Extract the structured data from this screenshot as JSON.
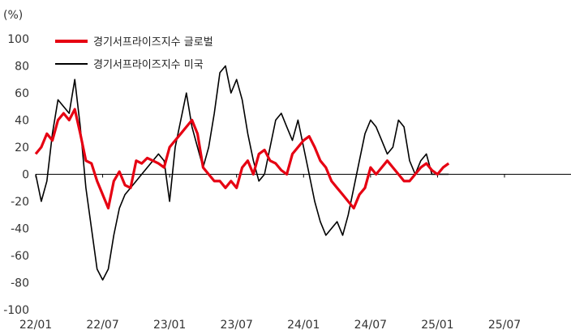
{
  "chart_data": {
    "type": "line",
    "ylabel": "(%)",
    "ylim": [
      -100,
      100
    ],
    "yticks": [
      100,
      80,
      60,
      40,
      20,
      0,
      -20,
      -40,
      -60,
      -80,
      -100
    ],
    "x_ticks": [
      {
        "label": "22/01",
        "month": 0
      },
      {
        "label": "22/07",
        "month": 6
      },
      {
        "label": "23/01",
        "month": 12
      },
      {
        "label": "23/07",
        "month": 18
      },
      {
        "label": "24/01",
        "month": 24
      },
      {
        "label": "24/07",
        "month": 30
      },
      {
        "label": "25/01",
        "month": 36
      },
      {
        "label": "25/07",
        "month": 42
      }
    ],
    "xlim": [
      0,
      48
    ],
    "zero_line": true,
    "legend_position": "top-left",
    "series": [
      {
        "name": "경기서프라이즈지수 글로벌",
        "color": "#e60012",
        "x": [
          0,
          0.5,
          1,
          1.5,
          2,
          2.5,
          3,
          3.5,
          4,
          4.5,
          5,
          5.5,
          6,
          6.5,
          7,
          7.5,
          8,
          8.5,
          9,
          9.5,
          10,
          10.5,
          11,
          11.5,
          12,
          12.5,
          13,
          13.5,
          14,
          14.5,
          15,
          15.5,
          16,
          16.5,
          17,
          17.5,
          18,
          18.5,
          19,
          19.5,
          20,
          20.5,
          21,
          21.5,
          22,
          22.5,
          23,
          23.5,
          24,
          24.5,
          25,
          25.5,
          26,
          26.5,
          27,
          27.5,
          28,
          28.5,
          29,
          29.5,
          30,
          30.5,
          31,
          31.5,
          32,
          32.5,
          33,
          33.5,
          34,
          34.5,
          35,
          35.5,
          36,
          36.5,
          37
        ],
        "y": [
          15,
          20,
          30,
          25,
          40,
          45,
          40,
          48,
          30,
          10,
          8,
          -5,
          -15,
          -25,
          -5,
          2,
          -8,
          -10,
          10,
          8,
          12,
          10,
          8,
          5,
          20,
          25,
          30,
          35,
          40,
          30,
          5,
          0,
          -5,
          -5,
          -10,
          -5,
          -10,
          5,
          10,
          0,
          15,
          18,
          10,
          8,
          3,
          0,
          15,
          20,
          25,
          28,
          20,
          10,
          5,
          -5,
          -10,
          -15,
          -20,
          -25,
          -15,
          -10,
          5,
          0,
          5,
          10,
          5,
          0,
          -5,
          -5,
          0,
          5,
          8,
          3,
          0,
          5,
          8
        ]
      },
      {
        "name": "경기서프라이즈지수 미국",
        "color": "#000000",
        "x": [
          0,
          0.5,
          1,
          1.5,
          2,
          2.5,
          3,
          3.5,
          4,
          4.5,
          5,
          5.5,
          6,
          6.5,
          7,
          7.5,
          8,
          8.5,
          9,
          9.5,
          10,
          10.5,
          11,
          11.5,
          12,
          12.5,
          13,
          13.5,
          14,
          14.5,
          15,
          15.5,
          16,
          16.5,
          17,
          17.5,
          18,
          18.5,
          19,
          19.5,
          20,
          20.5,
          21,
          21.5,
          22,
          22.5,
          23,
          23.5,
          24,
          24.5,
          25,
          25.5,
          26,
          26.5,
          27,
          27.5,
          28,
          28.5,
          29,
          29.5,
          30,
          30.5,
          31,
          31.5,
          32,
          32.5,
          33,
          33.5,
          34,
          34.5,
          35,
          35.5,
          36,
          36.5,
          37
        ],
        "y": [
          0,
          -20,
          -5,
          30,
          55,
          50,
          45,
          70,
          35,
          -10,
          -40,
          -70,
          -78,
          -70,
          -45,
          -25,
          -15,
          -10,
          -5,
          0,
          5,
          10,
          15,
          10,
          -20,
          20,
          40,
          60,
          35,
          20,
          5,
          20,
          45,
          75,
          80,
          60,
          70,
          55,
          30,
          10,
          -5,
          0,
          20,
          40,
          45,
          35,
          25,
          40,
          20,
          0,
          -20,
          -35,
          -45,
          -40,
          -35,
          -45,
          -30,
          -10,
          10,
          30,
          40,
          35,
          25,
          15,
          20,
          40,
          35,
          10,
          0,
          10,
          15,
          0,
          0,
          0,
          0
        ]
      }
    ]
  }
}
